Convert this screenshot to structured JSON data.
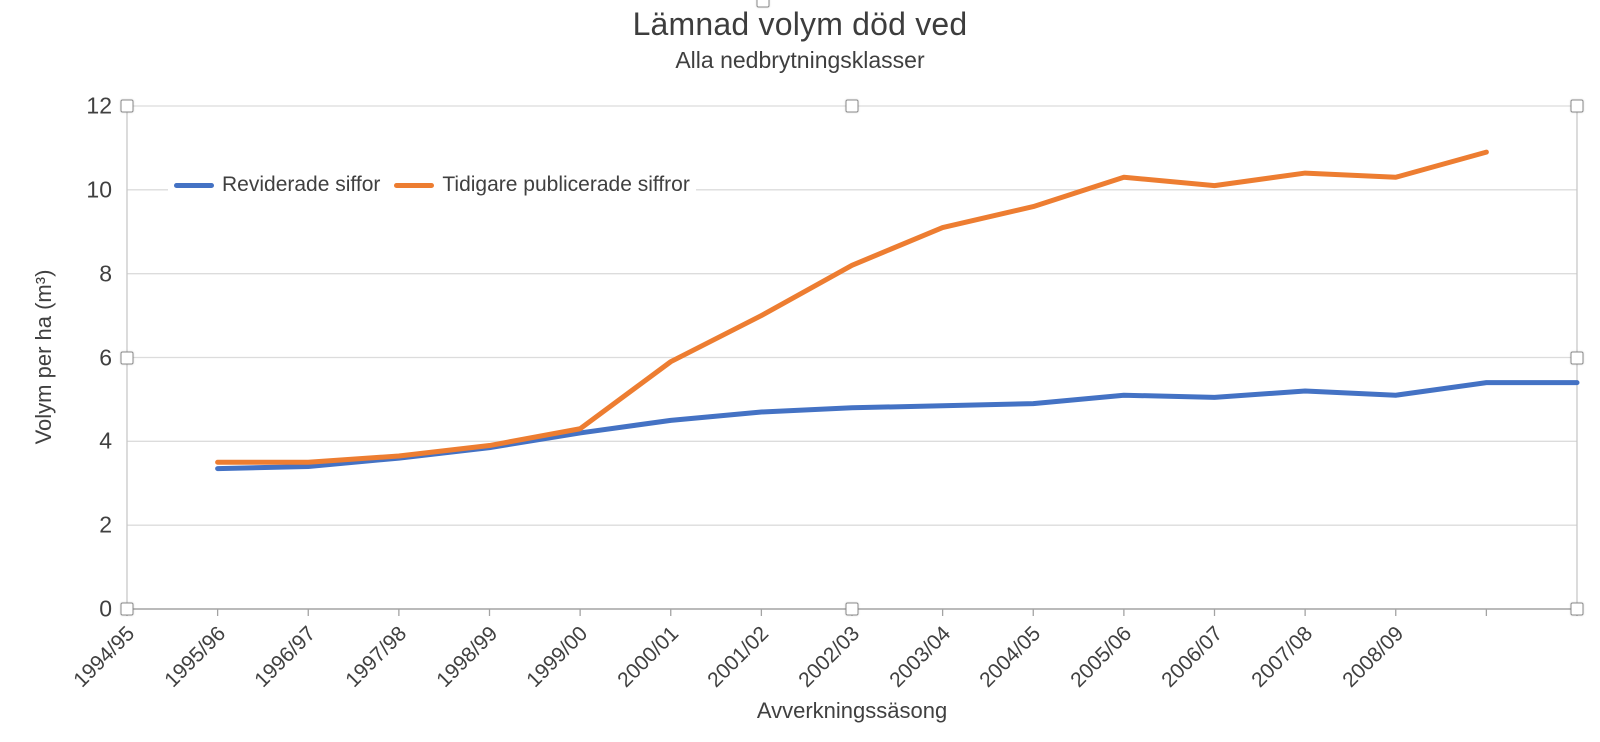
{
  "chart_data": {
    "type": "line",
    "title": "Lämnad volym död ved",
    "subtitle": "Alla nedbrytningsklasser",
    "xlabel": "Avverkningssäsong",
    "ylabel": "Volym per ha (m³)",
    "ylim": [
      0,
      12
    ],
    "ytick_values": [
      0,
      2,
      4,
      6,
      8,
      10,
      12
    ],
    "ytick_labels": [
      "0",
      "2",
      "4",
      "6",
      "8",
      "10",
      "12"
    ],
    "x_tick_labels": [
      "1994/95",
      "1995/96",
      "1996/97",
      "1997/98",
      "1998/99",
      "1999/00",
      "2000/01",
      "2001/02",
      "2002/03",
      "2003/04",
      "2004/05",
      "2005/06",
      "2006/07",
      "2007/08",
      "2008/09"
    ],
    "x_axis_intervals": 16,
    "grid": true,
    "legend_position": "inside-top-left",
    "series": [
      {
        "name": "Reviderade siffor",
        "color": "#4472C4",
        "start_index": 1,
        "values": [
          3.35,
          3.4,
          3.6,
          3.85,
          4.2,
          4.5,
          4.7,
          4.8,
          4.85,
          4.9,
          5.1,
          5.05,
          5.2,
          5.1,
          5.4,
          5.4
        ]
      },
      {
        "name": "Tidigare publicerade siffror",
        "color": "#ED7D31",
        "start_index": 1,
        "values": [
          3.5,
          3.5,
          3.65,
          3.9,
          4.3,
          5.9,
          7.0,
          8.2,
          9.1,
          9.6,
          10.3,
          10.1,
          10.4,
          10.3,
          10.9
        ]
      }
    ],
    "axis_colors": {
      "gridline": "#dcdcdc",
      "plot_border": "#c8c8c8",
      "x_axis_line": "#a3a3a3"
    }
  },
  "ui": {
    "selection_handles_visible": true
  }
}
